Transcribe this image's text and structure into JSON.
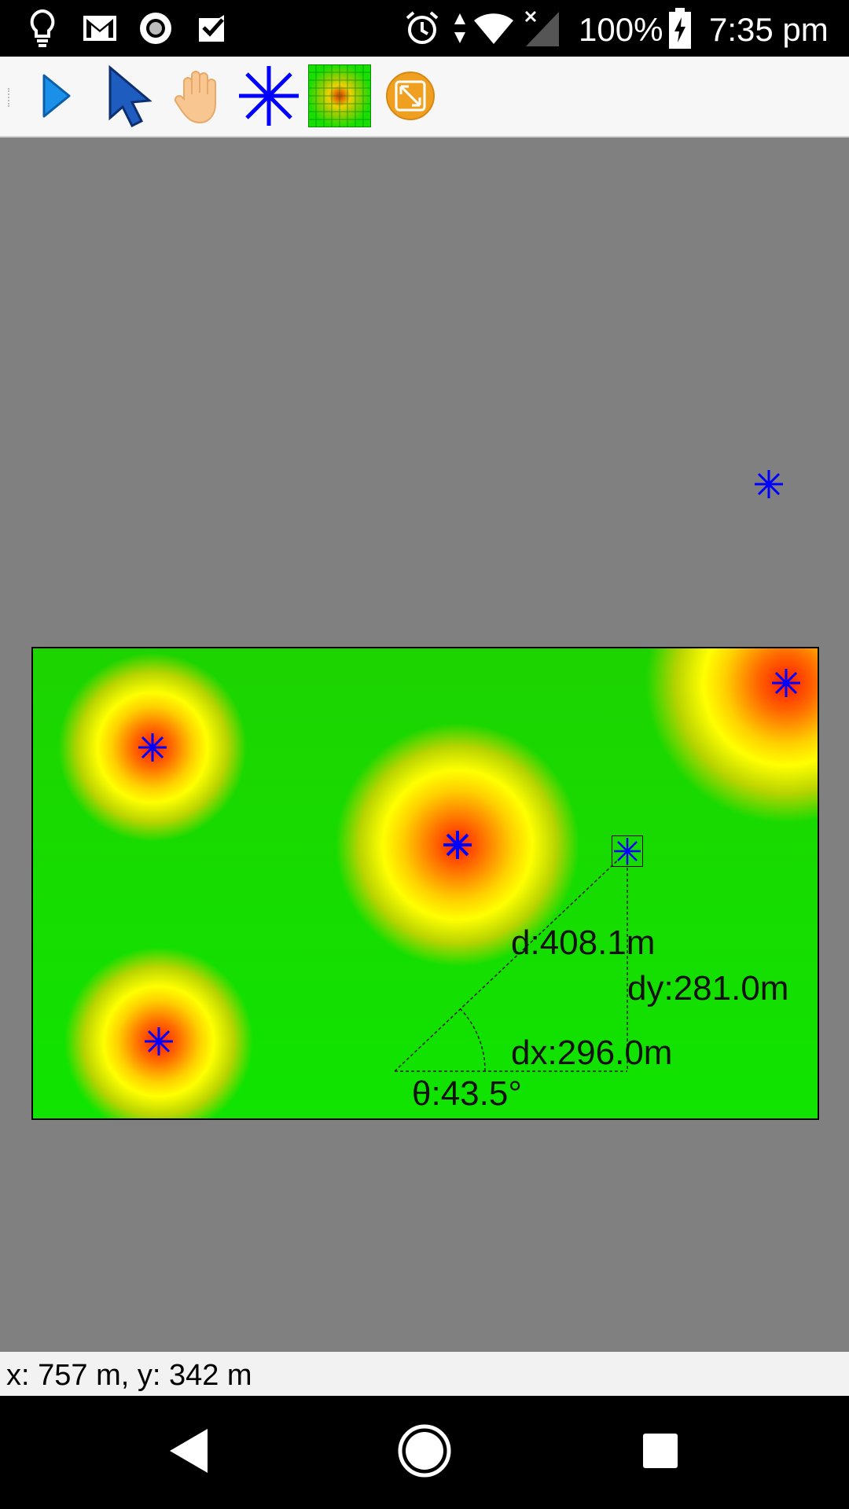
{
  "status_bar": {
    "battery_text": "100%",
    "time": "7:35 pm",
    "left_icons": [
      "bulb-icon",
      "gmail-icon",
      "record-icon",
      "task-check-icon"
    ],
    "right_icons": [
      "alarm-icon",
      "data-arrows-icon",
      "wifi-icon",
      "no-signal-icon",
      "battery-charging-icon"
    ]
  },
  "toolbar": {
    "tools": [
      "play-icon",
      "pointer-arrow-icon",
      "hand-pan-icon",
      "asterisk-marker-icon",
      "heatmap-grid-icon",
      "expand-icon"
    ]
  },
  "map": {
    "measure": {
      "distance": "d:408.1m",
      "dx": "dx:296.0m",
      "dy": "dy:281.0m",
      "angle": "θ:43.5°"
    },
    "colors": {
      "field": "#10e400",
      "hot": "#ff1a00",
      "warm": "#ffff00",
      "marker": "#0000ff"
    }
  },
  "coord_bar": {
    "text": "x: 757 m, y: 342 m"
  },
  "nav_bar": {
    "buttons": [
      "back-icon",
      "home-icon",
      "recents-icon"
    ]
  }
}
